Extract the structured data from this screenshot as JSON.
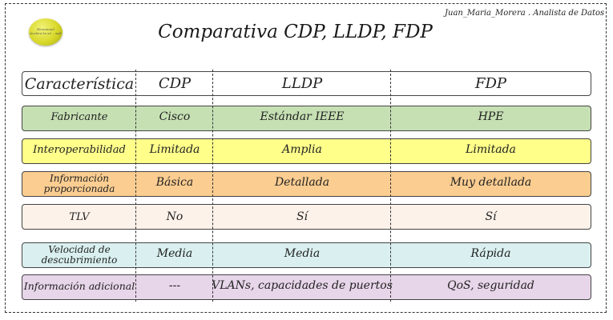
{
  "author": "Juan_Maria_Morera . Analista de Datos",
  "logo_text": [
    "Emmanuel",
    "Acelera tu sé .. sufr"
  ],
  "title": "Comparativa CDP, LLDP, FDP",
  "header": {
    "characteristic": "Característica",
    "cdp": "CDP",
    "lldp": "LLDP",
    "fdp": "FDP"
  },
  "rows": [
    {
      "label": "Fabricante",
      "cdp": "Cisco",
      "lldp": "Estándar IEEE",
      "fdp": "HPE",
      "color": "#c6e0b4"
    },
    {
      "label": "Interoperabilidad",
      "cdp": "Limitada",
      "lldp": "Amplia",
      "fdp": "Limitada",
      "color": "#ffff8a"
    },
    {
      "label": "Información proporcionada",
      "cdp": "Básica",
      "lldp": "Detallada",
      "fdp": "Muy detallada",
      "color": "#fbcd91"
    },
    {
      "label": "TLV",
      "cdp": "No",
      "lldp": "Sí",
      "fdp": "Sí",
      "color": "#fdf2ea"
    },
    {
      "label": "Velocidad de descubrimiento",
      "cdp": "Media",
      "lldp": "Media",
      "fdp": "Rápida",
      "color": "#daf0f0"
    },
    {
      "label": "Información adicional",
      "cdp": "---",
      "lldp": "VLANs, capacidades de puertos",
      "fdp": "QoS, seguridad",
      "color": "#e7d5e9"
    }
  ]
}
